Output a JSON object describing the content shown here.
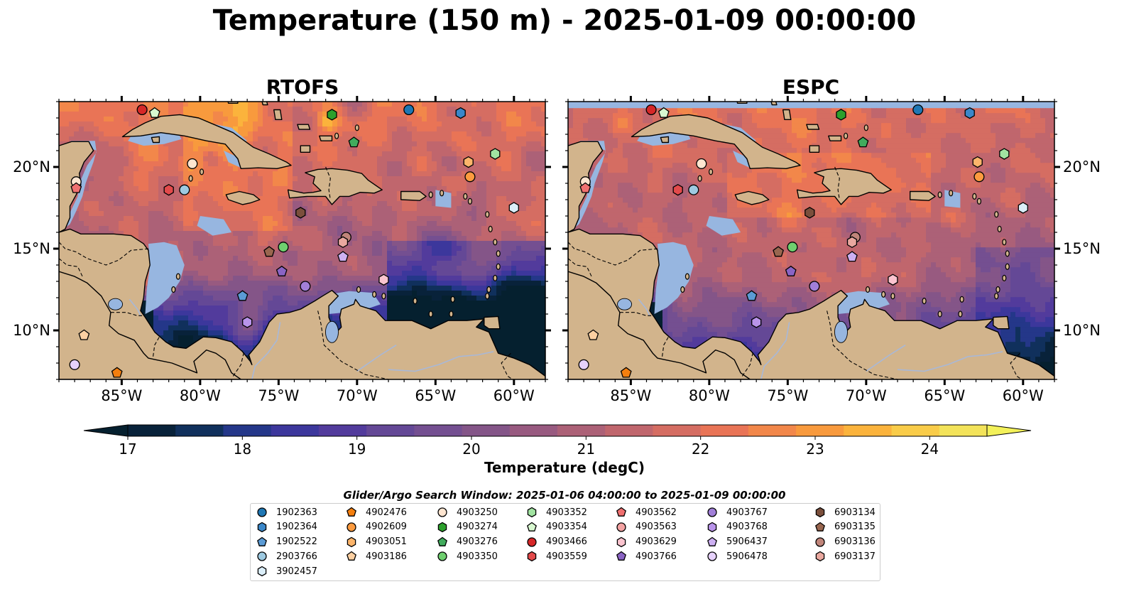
{
  "title": "Temperature (150 m) - 2025-01-09 00:00:00",
  "panels": [
    {
      "id": "rtofs",
      "title": "RTOFS"
    },
    {
      "id": "espc",
      "title": "ESPC"
    }
  ],
  "map": {
    "lon_range": [
      -89,
      -58
    ],
    "lat_range": [
      7,
      24
    ],
    "lon_ticks": [
      {
        "v": -85,
        "label": "85°W"
      },
      {
        "v": -80,
        "label": "80°W"
      },
      {
        "v": -75,
        "label": "75°W"
      },
      {
        "v": -70,
        "label": "70°W"
      },
      {
        "v": -65,
        "label": "65°W"
      },
      {
        "v": -60,
        "label": "60°W"
      }
    ],
    "lat_ticks": [
      {
        "v": 20,
        "label": "20°N"
      },
      {
        "v": 15,
        "label": "15°N"
      },
      {
        "v": 10,
        "label": "10°N"
      }
    ],
    "colors": {
      "land": "#d2b48c",
      "water_bg": "#97b6e0",
      "coast": "#000000",
      "river": "#a8b8d8"
    }
  },
  "colorbar": {
    "label": "Temperature (degC)",
    "vmin": 17,
    "vmax": 24.5,
    "step": 0.5,
    "ticks": [
      17,
      18,
      19,
      20,
      21,
      22,
      23,
      24
    ],
    "colors": [
      "#08223a",
      "#10305c",
      "#243789",
      "#3c379c",
      "#523b9c",
      "#644896",
      "#744f91",
      "#845588",
      "#985a80",
      "#ac6177",
      "#c0666d",
      "#d56d62",
      "#e97456",
      "#f2874a",
      "#f89a3d",
      "#fbb33c",
      "#f9cc49",
      "#f3e35a"
    ],
    "over_color": "#f3f15a",
    "under_color": "#05202f"
  },
  "legend": {
    "title": "Glider/Argo Search Window: 2025-01-06 04:00:00 to 2025-01-09 00:00:00",
    "items": [
      {
        "id": "1902363",
        "shape": "circle",
        "color": "#1f77b4"
      },
      {
        "id": "1902364",
        "shape": "hexagon",
        "color": "#3a87c9"
      },
      {
        "id": "1902522",
        "shape": "pentagon",
        "color": "#5b9bd5"
      },
      {
        "id": "2903766",
        "shape": "circle",
        "color": "#9ecae1"
      },
      {
        "id": "3902457",
        "shape": "hexagon",
        "color": "#dbeef9"
      },
      {
        "id": "4902476",
        "shape": "pentagon",
        "color": "#f57f0e"
      },
      {
        "id": "4902609",
        "shape": "circle",
        "color": "#fd9b3f"
      },
      {
        "id": "4903051",
        "shape": "hexagon",
        "color": "#fdb56b"
      },
      {
        "id": "4903186",
        "shape": "pentagon",
        "color": "#fdd0a2"
      },
      {
        "id": "4903250",
        "shape": "circle",
        "color": "#fee5d0"
      },
      {
        "id": "4903274",
        "shape": "hexagon",
        "color": "#2ca02c"
      },
      {
        "id": "4903276",
        "shape": "pentagon",
        "color": "#41ab5d"
      },
      {
        "id": "4903350",
        "shape": "circle",
        "color": "#6fcf6f"
      },
      {
        "id": "4903352",
        "shape": "hexagon",
        "color": "#a1e3a1"
      },
      {
        "id": "4903354",
        "shape": "pentagon",
        "color": "#d8f8d0"
      },
      {
        "id": "4903466",
        "shape": "circle",
        "color": "#d62728"
      },
      {
        "id": "4903559",
        "shape": "hexagon",
        "color": "#e34a4b"
      },
      {
        "id": "4903562",
        "shape": "pentagon",
        "color": "#f07070"
      },
      {
        "id": "4903563",
        "shape": "circle",
        "color": "#f4a3a3"
      },
      {
        "id": "4903629",
        "shape": "hexagon",
        "color": "#fbc4cf"
      },
      {
        "id": "4903766",
        "shape": "pentagon",
        "color": "#8a64c4"
      },
      {
        "id": "4903767",
        "shape": "circle",
        "color": "#a17fd8"
      },
      {
        "id": "4903768",
        "shape": "hexagon",
        "color": "#b994ea"
      },
      {
        "id": "5906437",
        "shape": "pentagon",
        "color": "#cdb0f2"
      },
      {
        "id": "5906478",
        "shape": "circle",
        "color": "#e6d1fb"
      },
      {
        "id": "6903134",
        "shape": "hexagon",
        "color": "#7b4f3c"
      },
      {
        "id": "6903135",
        "shape": "pentagon",
        "color": "#99664f"
      },
      {
        "id": "6903136",
        "shape": "circle",
        "color": "#c0857a"
      },
      {
        "id": "6903137",
        "shape": "hexagon",
        "color": "#e9a89f"
      }
    ]
  },
  "markers": [
    {
      "id": "4903466",
      "lon": -83.7,
      "lat": 23.5
    },
    {
      "id": "4903354",
      "lon": -82.9,
      "lat": 23.3
    },
    {
      "id": "1902363",
      "lon": -66.7,
      "lat": 23.5
    },
    {
      "id": "1902364",
      "lon": -63.4,
      "lat": 23.3
    },
    {
      "id": "4903274",
      "lon": -71.6,
      "lat": 23.2
    },
    {
      "id": "4903276",
      "lon": -70.2,
      "lat": 21.5
    },
    {
      "id": "4903352",
      "lon": -61.2,
      "lat": 20.8
    },
    {
      "id": "4903250",
      "lon": -80.5,
      "lat": 20.2
    },
    {
      "id": "4903051",
      "lon": -62.9,
      "lat": 20.3
    },
    {
      "id": "4902609",
      "lon": -62.8,
      "lat": 19.4
    },
    {
      "id": "4903250",
      "lon": -87.9,
      "lat": 19.1
    },
    {
      "id": "4903562",
      "lon": -87.9,
      "lat": 18.7
    },
    {
      "id": "4903559",
      "lon": -82.0,
      "lat": 18.6
    },
    {
      "id": "2903766",
      "lon": -81.0,
      "lat": 18.6
    },
    {
      "id": "3902457",
      "lon": -60.0,
      "lat": 17.5
    },
    {
      "id": "6903134",
      "lon": -73.6,
      "lat": 17.2
    },
    {
      "id": "6903136",
      "lon": -70.7,
      "lat": 15.7
    },
    {
      "id": "6903137",
      "lon": -70.9,
      "lat": 15.4
    },
    {
      "id": "4903350",
      "lon": -74.7,
      "lat": 15.1
    },
    {
      "id": "6903135",
      "lon": -75.6,
      "lat": 14.8
    },
    {
      "id": "5906437",
      "lon": -70.9,
      "lat": 14.5
    },
    {
      "id": "4903766",
      "lon": -74.8,
      "lat": 13.6
    },
    {
      "id": "4903629",
      "lon": -68.3,
      "lat": 13.1
    },
    {
      "id": "4903767",
      "lon": -73.3,
      "lat": 12.7
    },
    {
      "id": "1902522",
      "lon": -77.3,
      "lat": 12.1
    },
    {
      "id": "4903768",
      "lon": -77.0,
      "lat": 10.5
    },
    {
      "id": "4903186",
      "lon": -87.4,
      "lat": 9.7
    },
    {
      "id": "5906478",
      "lon": -88.0,
      "lat": 7.9
    },
    {
      "id": "4902476",
      "lon": -85.3,
      "lat": 7.4
    }
  ]
}
